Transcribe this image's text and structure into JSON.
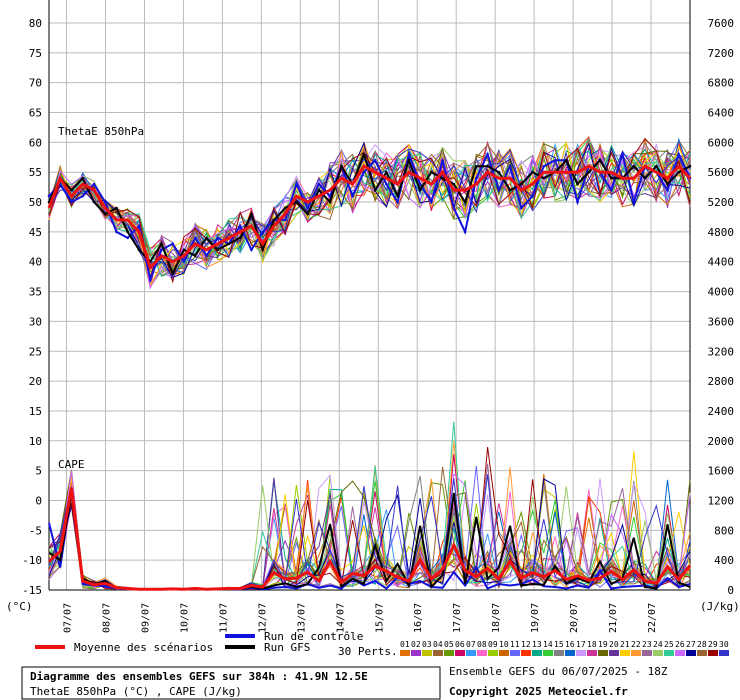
{
  "header": {
    "title": "Diagramme des ensembles GEFS sur 384h : 41.9N 12.5E",
    "subtitle": "ThetaE 850hPa (°C) , CAPE (J/kg)",
    "run_info": "Ensemble GEFS du 06/07/2025 - 18Z",
    "copyright": "Copyright 2025 Meteociel.fr"
  },
  "legend": {
    "mean_label": "Moyenne des scénarios",
    "control_label": "Run de contrôle",
    "gfs_label": "Run GFS",
    "perts_label": "30 Perts.",
    "pert_numbers": [
      "01",
      "02",
      "03",
      "04",
      "05",
      "06",
      "07",
      "08",
      "09",
      "10",
      "11",
      "12",
      "13",
      "14",
      "15",
      "16",
      "17",
      "18",
      "19",
      "20",
      "21",
      "22",
      "23",
      "24",
      "25",
      "26",
      "27",
      "28",
      "29",
      "30"
    ],
    "pert_colors": [
      "#e07000",
      "#9933cc",
      "#c0c000",
      "#996633",
      "#669900",
      "#cc0066",
      "#3399ff",
      "#ff66cc",
      "#99cc00",
      "#cc6600",
      "#6666ff",
      "#ff3300",
      "#00aa88",
      "#33cc33",
      "#808080",
      "#0066cc",
      "#cc99ff",
      "#cc3399",
      "#666600",
      "#663399",
      "#ffcc00",
      "#ff9933",
      "#996699",
      "#99cc66",
      "#33cc99",
      "#cc66ff",
      "#000099",
      "#996633",
      "#990000",
      "#3333cc"
    ]
  },
  "colors": {
    "mean": "#ee1111",
    "control": "#1111dd",
    "gfs": "#000000",
    "grid": "#bbbbbb"
  },
  "chart_data": {
    "type": "line",
    "dates": [
      "07/07",
      "08/07",
      "09/07",
      "10/07",
      "11/07",
      "12/07",
      "13/07",
      "14/07",
      "15/07",
      "16/07",
      "17/07",
      "18/07",
      "19/07",
      "20/07",
      "21/07",
      "22/07"
    ],
    "x_unit": "hours since run start",
    "left_axis": {
      "label": "(°C)",
      "ticks": [
        80,
        75,
        70,
        65,
        60,
        55,
        50,
        45,
        40,
        35,
        30,
        25,
        20,
        15,
        10,
        5,
        0,
        -5,
        -10,
        -15
      ],
      "range": [
        -15,
        80
      ]
    },
    "right_axis": {
      "label": "(J/kg)",
      "ticks": [
        7600,
        7200,
        6800,
        6400,
        6000,
        5600,
        5200,
        4800,
        4400,
        4000,
        3600,
        3200,
        2800,
        2400,
        2000,
        1600,
        1200,
        800,
        400,
        0
      ],
      "range": [
        0,
        7600
      ]
    },
    "annotations": [
      "ThetaE 850hPa",
      "CAPE"
    ],
    "grid": true,
    "thetae_series": [
      {
        "name": "Moyenne des scénarios",
        "values": [
          49,
          54,
          51,
          53,
          52,
          49,
          47,
          47,
          45,
          39,
          41,
          40,
          41,
          43,
          42,
          43,
          44,
          45,
          46,
          43,
          46,
          48,
          51,
          50,
          51,
          52,
          54,
          53,
          56,
          55,
          54,
          53,
          55,
          54,
          53,
          55,
          52,
          52,
          53,
          55,
          54,
          54,
          52,
          53,
          55,
          55,
          55,
          55,
          56,
          55,
          55,
          54,
          54,
          56,
          55,
          54,
          56,
          54
        ]
      },
      {
        "name": "Run de contrôle",
        "values": [
          51,
          53,
          50,
          51,
          53,
          50,
          45,
          44,
          46,
          37,
          42,
          43,
          40,
          44,
          41,
          44,
          43,
          46,
          42,
          45,
          47,
          47,
          53,
          49,
          53,
          51,
          56,
          51,
          55,
          57,
          53,
          50,
          58,
          53,
          50,
          57,
          49,
          45,
          54,
          58,
          52,
          56,
          49,
          51,
          56,
          57,
          57,
          50,
          56,
          55,
          52,
          58,
          50,
          56,
          55,
          52,
          58,
          54
        ]
      },
      {
        "name": "Run GFS",
        "values": [
          50,
          54,
          52,
          54,
          50,
          48,
          49,
          45,
          42,
          40,
          43,
          38,
          42,
          41,
          44,
          42,
          43,
          44,
          48,
          42,
          47,
          49,
          50,
          48,
          52,
          50,
          56,
          53,
          58,
          52,
          55,
          51,
          57,
          52,
          55,
          54,
          53,
          50,
          56,
          56,
          55,
          52,
          53,
          55,
          54,
          55,
          57,
          53,
          55,
          57,
          54,
          54,
          56,
          54,
          56,
          53,
          55,
          56
        ]
      }
    ],
    "cape_series": [
      {
        "name": "Moyenne des scénarios",
        "values": [
          380,
          520,
          1370,
          120,
          70,
          90,
          30,
          20,
          10,
          10,
          10,
          15,
          10,
          20,
          10,
          15,
          20,
          20,
          60,
          40,
          230,
          150,
          160,
          240,
          120,
          380,
          100,
          220,
          190,
          320,
          250,
          170,
          120,
          410,
          150,
          280,
          600,
          260,
          180,
          290,
          150,
          380,
          160,
          230,
          180,
          260,
          140,
          190,
          130,
          160,
          250,
          140,
          270,
          120,
          90,
          310,
          140,
          330
        ]
      },
      {
        "name": "Run de contrôle",
        "values": [
          900,
          300,
          1350,
          80,
          60,
          50,
          20,
          10,
          10,
          10,
          10,
          10,
          10,
          10,
          10,
          10,
          10,
          10,
          30,
          10,
          30,
          40,
          20,
          80,
          30,
          60,
          20,
          150,
          60,
          120,
          20,
          170,
          80,
          120,
          40,
          30,
          240,
          60,
          300,
          20,
          80,
          60,
          80,
          140,
          50,
          40,
          20,
          60,
          30,
          260,
          20,
          40,
          50,
          60,
          20,
          160,
          40,
          80
        ]
      },
      {
        "name": "Run GFS",
        "values": [
          500,
          400,
          1300,
          150,
          80,
          120,
          30,
          20,
          10,
          10,
          10,
          10,
          10,
          10,
          10,
          10,
          10,
          20,
          40,
          20,
          60,
          90,
          40,
          80,
          300,
          880,
          50,
          150,
          80,
          600,
          120,
          350,
          60,
          860,
          40,
          200,
          1300,
          80,
          980,
          150,
          300,
          860,
          60,
          80,
          70,
          320,
          90,
          160,
          100,
          380,
          80,
          160,
          700,
          40,
          20,
          880,
          100,
          40
        ]
      }
    ]
  }
}
